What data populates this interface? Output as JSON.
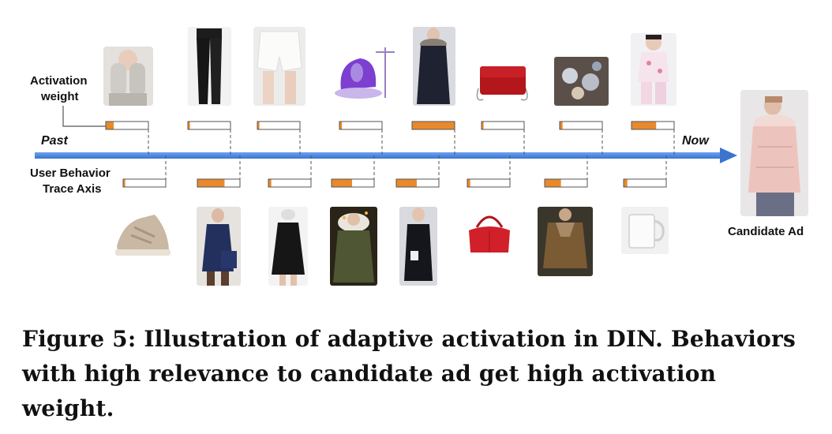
{
  "labels": {
    "activation_line1": "Activation",
    "activation_line2": "weight",
    "past": "Past",
    "now": "Now",
    "axis_line1": "User Behavior",
    "axis_line2": "Trace Axis",
    "candidate": "Candidate Ad"
  },
  "caption": "Figure 5: Illustration of adaptive activation in DIN. Behaviors with high relevance to candidate ad get high activation weight.",
  "colors": {
    "axis": "#4a87e0",
    "bar_fill": "#e8892c",
    "bar_border": "#555555",
    "dash": "#555555"
  },
  "behaviors_top": [
    {
      "item": "gloves-photo",
      "weight": 0.18
    },
    {
      "item": "black-pants-photo",
      "weight": 0.04
    },
    {
      "item": "white-shorts-photo",
      "weight": 0.04
    },
    {
      "item": "garment-steamer-photo",
      "weight": 0.05
    },
    {
      "item": "dark-down-coat-photo",
      "weight": 1.0
    },
    {
      "item": "red-handbag-photo",
      "weight": 0.04
    },
    {
      "item": "hair-accessories-photo",
      "weight": 0.06
    },
    {
      "item": "kids-pajamas-photo",
      "weight": 0.58
    }
  ],
  "behaviors_bottom": [
    {
      "item": "silver-sneaker-photo",
      "weight": 0.04
    },
    {
      "item": "navy-puffer-coat-photo",
      "weight": 0.64
    },
    {
      "item": "black-dress-photo",
      "weight": 0.06
    },
    {
      "item": "green-fur-hood-coat-photo",
      "weight": 0.48
    },
    {
      "item": "long-black-coat-photo",
      "weight": 0.48
    },
    {
      "item": "red-boston-bag-photo",
      "weight": 0.06
    },
    {
      "item": "brown-fur-jacket-photo",
      "weight": 0.38
    },
    {
      "item": "white-mug-photo",
      "weight": 0.08
    }
  ],
  "candidate_ad": {
    "item": "pink-down-jacket-photo"
  }
}
